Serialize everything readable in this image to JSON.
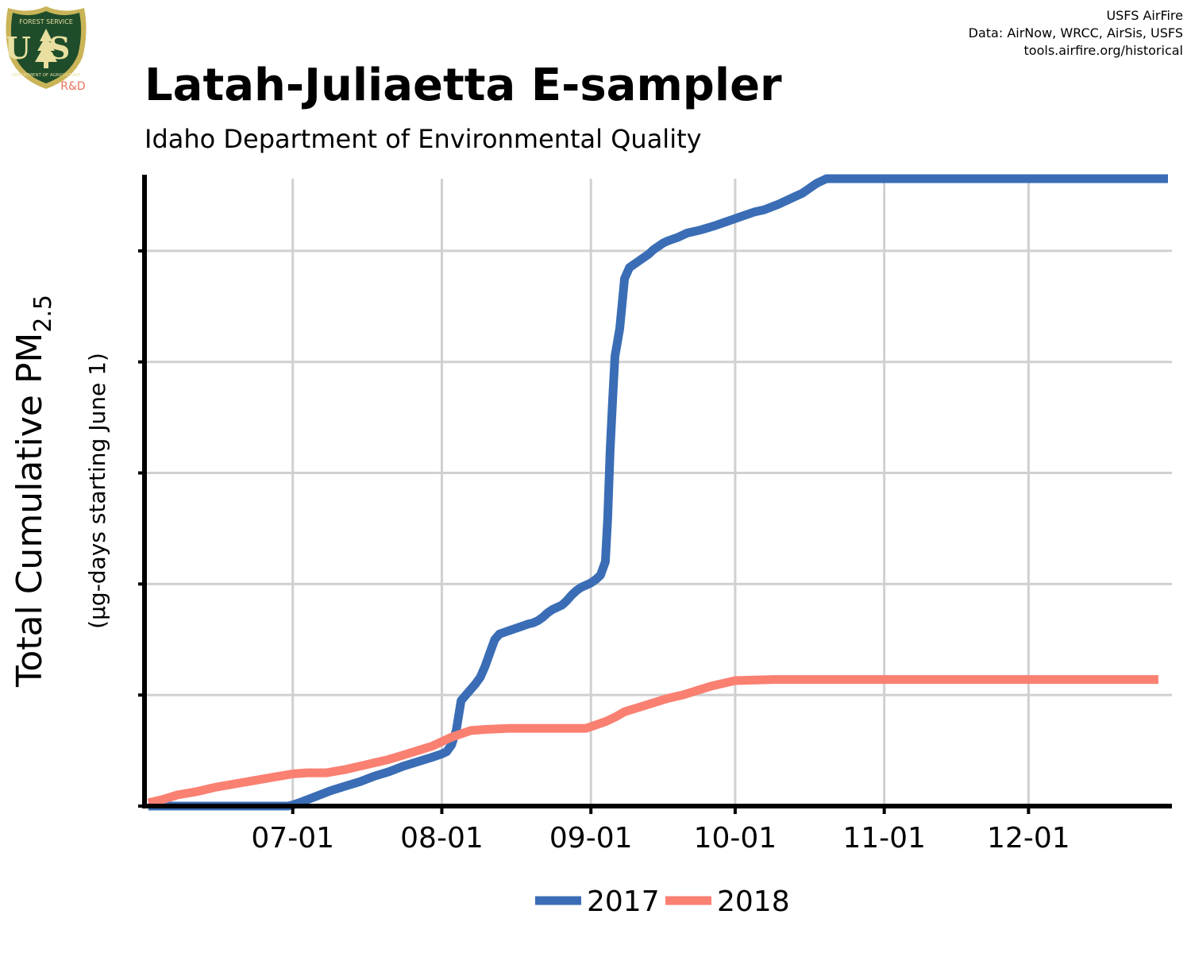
{
  "logo": {
    "top_text": "FOREST SERVICE",
    "letters": "US",
    "bottom_text": "DEPARTMENT OF AGRICULTURE",
    "tag": "R&D",
    "colors": {
      "shield": "#1f4d2b",
      "rim": "#c9b458",
      "tag": "#e8735a"
    }
  },
  "credits": [
    "USFS AirFire",
    "Data: AirNow, WRCC, AirSis, USFS",
    "tools.airfire.org/historical"
  ],
  "colors": {
    "series_2017": "#3a6db5",
    "series_2018": "#fa8072",
    "grid": "#d0d0d0",
    "axis": "#000000"
  },
  "chart_data": {
    "type": "line",
    "title": "Latah-Juliaetta E-sampler",
    "subtitle": "Idaho Department of Environmental Quality",
    "ylabel": "Total Cumulative PM",
    "ylabel_subscript": "2.5",
    "ylabel_secondary": "(µg-days starting June 1)",
    "xlabel": "",
    "x_tick_labels": [
      "07-01",
      "08-01",
      "09-01",
      "10-01",
      "11-01",
      "12-01"
    ],
    "x_tick_days": [
      30,
      61,
      92,
      122,
      153,
      183
    ],
    "xlim_days": [
      0,
      212
    ],
    "ylim": [
      0,
      5.65
    ],
    "y_gridlines": [
      0,
      1,
      2,
      3,
      4,
      5
    ],
    "y_tick_labels": [],
    "grid": true,
    "legend_position": "bottom",
    "series": [
      {
        "name": "2017",
        "color": "#3a6db5",
        "x_days": [
          0,
          3,
          6,
          10,
          14,
          18,
          22,
          26,
          29,
          30,
          32,
          35,
          38,
          41,
          44,
          47,
          50,
          53,
          56,
          59,
          61,
          62,
          63,
          64,
          65,
          67,
          68,
          69,
          70,
          71,
          72,
          73,
          75,
          77,
          79,
          80,
          81,
          82,
          83,
          84,
          85,
          86,
          87,
          88,
          89,
          90,
          91,
          92,
          93,
          94,
          95,
          95.5,
          96,
          96.5,
          97,
          98,
          99,
          100,
          101,
          102,
          103,
          104,
          105,
          106,
          107,
          108,
          110,
          112,
          115,
          118,
          120,
          122,
          124,
          126,
          128,
          131,
          134,
          136,
          137,
          138,
          139,
          140,
          141,
          142,
          143,
          144,
          148,
          155,
          165,
          175,
          185,
          195,
          212
        ],
        "values": [
          0,
          0,
          0,
          0,
          0,
          0,
          0,
          0,
          0,
          0.01,
          0.04,
          0.09,
          0.14,
          0.18,
          0.22,
          0.27,
          0.31,
          0.36,
          0.4,
          0.44,
          0.47,
          0.49,
          0.55,
          0.68,
          0.95,
          1.05,
          1.1,
          1.16,
          1.26,
          1.38,
          1.5,
          1.55,
          1.58,
          1.61,
          1.64,
          1.65,
          1.67,
          1.7,
          1.74,
          1.77,
          1.79,
          1.81,
          1.85,
          1.9,
          1.94,
          1.97,
          1.99,
          2.01,
          2.04,
          2.08,
          2.2,
          2.6,
          3.2,
          3.65,
          4.05,
          4.3,
          4.75,
          4.85,
          4.88,
          4.91,
          4.94,
          4.97,
          5.01,
          5.04,
          5.07,
          5.09,
          5.12,
          5.16,
          5.19,
          5.23,
          5.26,
          5.29,
          5.32,
          5.35,
          5.37,
          5.42,
          5.48,
          5.52,
          5.55,
          5.58,
          5.61,
          5.63,
          5.65,
          5.65,
          5.65,
          5.65,
          5.65,
          5.65,
          5.65,
          5.65,
          5.65,
          5.65,
          5.65
        ]
      },
      {
        "name": "2018",
        "color": "#fa8072",
        "x_days": [
          0,
          3,
          6,
          10,
          14,
          18,
          22,
          26,
          30,
          33,
          37,
          41,
          44,
          47,
          50,
          53,
          56,
          59,
          61,
          63,
          65,
          67,
          70,
          75,
          80,
          85,
          89,
          91,
          93,
          95,
          97,
          99,
          102,
          105,
          108,
          111,
          114,
          117,
          119,
          120,
          122,
          130,
          140,
          150,
          160,
          170,
          180,
          190,
          200,
          210
        ],
        "values": [
          0.03,
          0.06,
          0.1,
          0.13,
          0.17,
          0.2,
          0.23,
          0.26,
          0.29,
          0.3,
          0.3,
          0.33,
          0.36,
          0.39,
          0.42,
          0.46,
          0.5,
          0.54,
          0.58,
          0.62,
          0.65,
          0.68,
          0.69,
          0.7,
          0.7,
          0.7,
          0.7,
          0.7,
          0.73,
          0.76,
          0.8,
          0.85,
          0.89,
          0.93,
          0.97,
          1.0,
          1.04,
          1.08,
          1.1,
          1.11,
          1.13,
          1.14,
          1.14,
          1.14,
          1.14,
          1.14,
          1.14,
          1.14,
          1.14,
          1.14
        ]
      }
    ]
  }
}
